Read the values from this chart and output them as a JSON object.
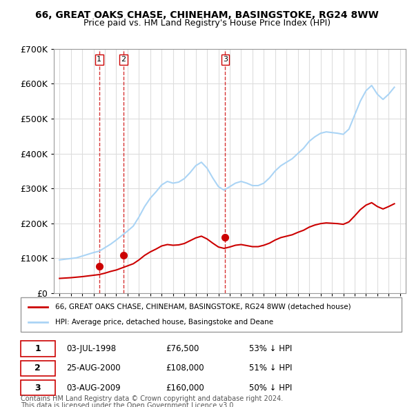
{
  "title": "66, GREAT OAKS CHASE, CHINEHAM, BASINGSTOKE, RG24 8WW",
  "subtitle": "Price paid vs. HM Land Registry's House Price Index (HPI)",
  "xlabel": "",
  "ylabel": "",
  "ylim": [
    0,
    700000
  ],
  "yticks": [
    0,
    100000,
    200000,
    300000,
    400000,
    500000,
    600000,
    700000
  ],
  "ytick_labels": [
    "£0",
    "£100K",
    "£200K",
    "£300K",
    "£400K",
    "£500K",
    "£600K",
    "£700K"
  ],
  "xlim_start": 1994.5,
  "xlim_end": 2025.5,
  "grid_color": "#dddddd",
  "hpi_color": "#aad4f5",
  "price_color": "#cc0000",
  "sale_marker_color": "#cc0000",
  "vline_color": "#cc0000",
  "transaction_label_color": "#333333",
  "legend_line1": "66, GREAT OAKS CHASE, CHINEHAM, BASINGSTOKE, RG24 8WW (detached house)",
  "legend_line2": "HPI: Average price, detached house, Basingstoke and Deane",
  "transactions": [
    {
      "num": 1,
      "date": "03-JUL-1998",
      "price": 76500,
      "pct": "53%",
      "year": 1998.5
    },
    {
      "num": 2,
      "date": "25-AUG-2000",
      "price": 108000,
      "pct": "51%",
      "year": 2000.65
    },
    {
      "num": 3,
      "date": "03-AUG-2009",
      "price": 160000,
      "pct": "50%",
      "year": 2009.59
    }
  ],
  "footer1": "Contains HM Land Registry data © Crown copyright and database right 2024.",
  "footer2": "This data is licensed under the Open Government Licence v3.0.",
  "hpi_data_x": [
    1995,
    1995.5,
    1996,
    1996.5,
    1997,
    1997.5,
    1998,
    1998.5,
    1999,
    1999.5,
    2000,
    2000.5,
    2001,
    2001.5,
    2002,
    2002.5,
    2003,
    2003.5,
    2004,
    2004.5,
    2005,
    2005.5,
    2006,
    2006.5,
    2007,
    2007.5,
    2008,
    2008.5,
    2009,
    2009.5,
    2010,
    2010.5,
    2011,
    2011.5,
    2012,
    2012.5,
    2013,
    2013.5,
    2014,
    2014.5,
    2015,
    2015.5,
    2016,
    2016.5,
    2017,
    2017.5,
    2018,
    2018.5,
    2019,
    2019.5,
    2020,
    2020.5,
    2021,
    2021.5,
    2022,
    2022.5,
    2023,
    2023.5,
    2024,
    2024.5
  ],
  "hpi_data_y": [
    95000,
    97000,
    99000,
    101000,
    106000,
    111000,
    116000,
    120000,
    130000,
    140000,
    152000,
    165000,
    178000,
    192000,
    218000,
    248000,
    272000,
    290000,
    310000,
    320000,
    315000,
    318000,
    328000,
    345000,
    365000,
    375000,
    358000,
    330000,
    305000,
    295000,
    305000,
    315000,
    320000,
    315000,
    308000,
    308000,
    315000,
    330000,
    350000,
    365000,
    375000,
    385000,
    400000,
    415000,
    435000,
    448000,
    458000,
    462000,
    460000,
    458000,
    455000,
    470000,
    510000,
    550000,
    580000,
    595000,
    570000,
    555000,
    570000,
    590000
  ],
  "price_data_x": [
    1995,
    1995.5,
    1996,
    1996.5,
    1997,
    1997.5,
    1998,
    1998.5,
    1999,
    1999.5,
    2000,
    2000.5,
    2001,
    2001.5,
    2002,
    2002.5,
    2003,
    2003.5,
    2004,
    2004.5,
    2005,
    2005.5,
    2006,
    2006.5,
    2007,
    2007.5,
    2008,
    2008.5,
    2009,
    2009.5,
    2010,
    2010.5,
    2011,
    2011.5,
    2012,
    2012.5,
    2013,
    2013.5,
    2014,
    2014.5,
    2015,
    2015.5,
    2016,
    2016.5,
    2017,
    2017.5,
    2018,
    2018.5,
    2019,
    2019.5,
    2020,
    2020.5,
    2021,
    2021.5,
    2022,
    2022.5,
    2023,
    2023.5,
    2024,
    2024.5
  ],
  "price_data_y": [
    42000,
    43000,
    44000,
    45500,
    47000,
    49000,
    51000,
    53000,
    57000,
    62000,
    66000,
    72000,
    78000,
    84000,
    95000,
    108000,
    118000,
    126000,
    135000,
    139000,
    137000,
    138000,
    142000,
    150000,
    158000,
    163000,
    155000,
    143000,
    132000,
    128000,
    132000,
    137000,
    139000,
    136000,
    133000,
    133000,
    137000,
    143000,
    152000,
    159000,
    163000,
    167000,
    174000,
    180000,
    189000,
    195000,
    199000,
    201000,
    200000,
    199000,
    197000,
    204000,
    221000,
    239000,
    252000,
    259000,
    248000,
    241000,
    248000,
    256000
  ]
}
